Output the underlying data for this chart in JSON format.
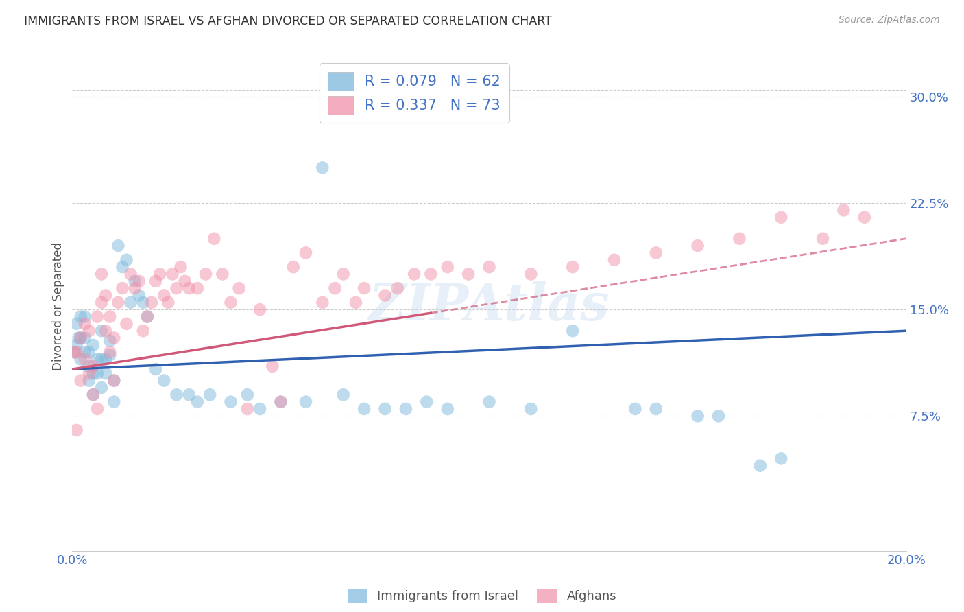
{
  "title": "IMMIGRANTS FROM ISRAEL VS AFGHAN DIVORCED OR SEPARATED CORRELATION CHART",
  "source": "Source: ZipAtlas.com",
  "ylabel": "Divorced or Separated",
  "y_ticks": [
    0.075,
    0.15,
    0.225,
    0.3
  ],
  "y_tick_labels": [
    "7.5%",
    "15.0%",
    "22.5%",
    "30.0%"
  ],
  "xlim": [
    0.0,
    0.2
  ],
  "ylim": [
    -0.02,
    0.325
  ],
  "series1_label": "Immigrants from Israel",
  "series2_label": "Afghans",
  "series1_color": "#7db8dc",
  "series2_color": "#f090a8",
  "line1_color": "#3060b0",
  "line2_color": "#d05878",
  "legend_r1": "0.079",
  "legend_n1": "62",
  "legend_r2": "0.337",
  "legend_n2": "73",
  "line1_x0": 0.0,
  "line1_y0": 0.108,
  "line1_x1": 0.2,
  "line1_y1": 0.135,
  "line2_x0": 0.0,
  "line2_y0": 0.108,
  "line2_x1": 0.2,
  "line2_y1": 0.2,
  "line2_solid_end": 0.086,
  "background_color": "#ffffff",
  "grid_color": "#cccccc",
  "title_color": "#333333",
  "axis_label_color": "#555555",
  "tick_color": "#4472c4",
  "source_color": "#999999",
  "israel_x": [
    0.0005,
    0.001,
    0.001,
    0.0015,
    0.002,
    0.002,
    0.002,
    0.003,
    0.003,
    0.003,
    0.004,
    0.004,
    0.004,
    0.005,
    0.005,
    0.005,
    0.006,
    0.006,
    0.007,
    0.007,
    0.007,
    0.008,
    0.008,
    0.009,
    0.009,
    0.01,
    0.01,
    0.011,
    0.012,
    0.013,
    0.014,
    0.015,
    0.016,
    0.017,
    0.018,
    0.02,
    0.022,
    0.025,
    0.028,
    0.03,
    0.033,
    0.038,
    0.042,
    0.045,
    0.05,
    0.056,
    0.06,
    0.065,
    0.07,
    0.075,
    0.08,
    0.085,
    0.09,
    0.1,
    0.11,
    0.12,
    0.135,
    0.14,
    0.15,
    0.155,
    0.165,
    0.17
  ],
  "israel_y": [
    0.12,
    0.125,
    0.14,
    0.13,
    0.115,
    0.13,
    0.145,
    0.12,
    0.13,
    0.145,
    0.1,
    0.11,
    0.12,
    0.09,
    0.105,
    0.125,
    0.105,
    0.115,
    0.095,
    0.115,
    0.135,
    0.105,
    0.115,
    0.118,
    0.128,
    0.1,
    0.085,
    0.195,
    0.18,
    0.185,
    0.155,
    0.17,
    0.16,
    0.155,
    0.145,
    0.108,
    0.1,
    0.09,
    0.09,
    0.085,
    0.09,
    0.085,
    0.09,
    0.08,
    0.085,
    0.085,
    0.25,
    0.09,
    0.08,
    0.08,
    0.08,
    0.085,
    0.08,
    0.085,
    0.08,
    0.135,
    0.08,
    0.08,
    0.075,
    0.075,
    0.04,
    0.045
  ],
  "afghan_x": [
    0.0005,
    0.001,
    0.001,
    0.002,
    0.002,
    0.003,
    0.003,
    0.004,
    0.004,
    0.005,
    0.005,
    0.006,
    0.006,
    0.007,
    0.007,
    0.008,
    0.008,
    0.009,
    0.009,
    0.01,
    0.01,
    0.011,
    0.012,
    0.013,
    0.014,
    0.015,
    0.016,
    0.017,
    0.018,
    0.019,
    0.02,
    0.021,
    0.022,
    0.023,
    0.024,
    0.025,
    0.026,
    0.027,
    0.028,
    0.03,
    0.032,
    0.034,
    0.036,
    0.038,
    0.04,
    0.042,
    0.045,
    0.048,
    0.05,
    0.053,
    0.056,
    0.06,
    0.063,
    0.065,
    0.068,
    0.07,
    0.075,
    0.078,
    0.082,
    0.086,
    0.09,
    0.095,
    0.1,
    0.11,
    0.12,
    0.13,
    0.14,
    0.15,
    0.16,
    0.17,
    0.18,
    0.185,
    0.19
  ],
  "afghan_y": [
    0.12,
    0.12,
    0.065,
    0.13,
    0.1,
    0.14,
    0.115,
    0.135,
    0.105,
    0.11,
    0.09,
    0.08,
    0.145,
    0.155,
    0.175,
    0.16,
    0.135,
    0.12,
    0.145,
    0.1,
    0.13,
    0.155,
    0.165,
    0.14,
    0.175,
    0.165,
    0.17,
    0.135,
    0.145,
    0.155,
    0.17,
    0.175,
    0.16,
    0.155,
    0.175,
    0.165,
    0.18,
    0.17,
    0.165,
    0.165,
    0.175,
    0.2,
    0.175,
    0.155,
    0.165,
    0.08,
    0.15,
    0.11,
    0.085,
    0.18,
    0.19,
    0.155,
    0.165,
    0.175,
    0.155,
    0.165,
    0.16,
    0.165,
    0.175,
    0.175,
    0.18,
    0.175,
    0.18,
    0.175,
    0.18,
    0.185,
    0.19,
    0.195,
    0.2,
    0.215,
    0.2,
    0.22,
    0.215
  ]
}
